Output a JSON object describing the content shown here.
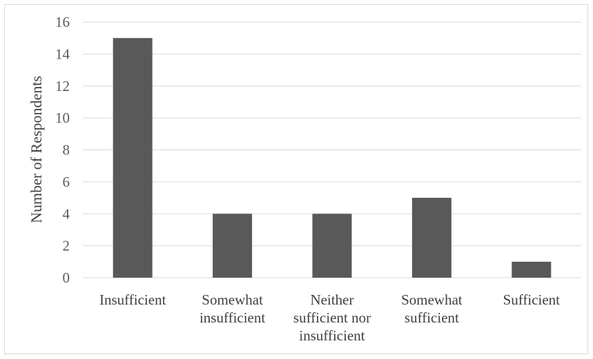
{
  "chart_data": {
    "type": "bar",
    "categories": [
      [
        "Insufficient"
      ],
      [
        "Somewhat",
        "insufficient"
      ],
      [
        "Neither",
        "sufficient nor",
        "insufficient"
      ],
      [
        "Somewhat",
        "sufficient"
      ],
      [
        "Sufficient"
      ]
    ],
    "values": [
      15,
      4,
      4,
      5,
      1
    ],
    "title": "",
    "xlabel": "",
    "ylabel": "Number of Respondents",
    "ylim": [
      0,
      16
    ],
    "yticks": [
      0,
      2,
      4,
      6,
      8,
      10,
      12,
      14,
      16
    ],
    "grid": true,
    "legend": "none",
    "colors": {
      "bar": "#595959",
      "grid": "#d9d9d9",
      "axis": "#d9d9d9"
    }
  }
}
